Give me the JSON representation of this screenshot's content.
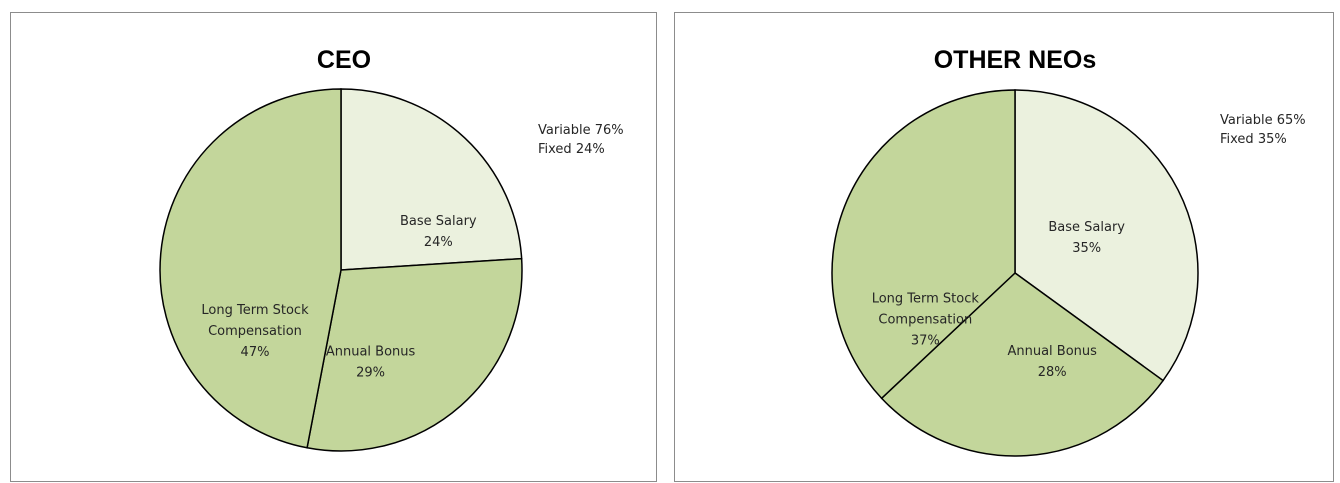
{
  "chart_data": [
    {
      "type": "pie",
      "title": "CEO",
      "slices": [
        {
          "label": "Base Salary",
          "value": 24,
          "value_label": "24%",
          "color": "#ebf1de"
        },
        {
          "label": "Annual Bonus",
          "value": 29,
          "value_label": "29%",
          "color": "#c3d69b"
        },
        {
          "label": "Long Term Stock Compensation",
          "label_lines": [
            "Long Term Stock",
            "Compensation"
          ],
          "value": 47,
          "value_label": "47%",
          "color": "#c3d69b"
        }
      ],
      "notes": [
        "Variable 76%",
        "Fixed 24%"
      ]
    },
    {
      "type": "pie",
      "title": "OTHER NEOs",
      "slices": [
        {
          "label": "Base Salary",
          "value": 35,
          "value_label": "35%",
          "color": "#ebf1de"
        },
        {
          "label": "Annual Bonus",
          "value": 28,
          "value_label": "28%",
          "color": "#c3d69b"
        },
        {
          "label": "Long Term Stock Compensation",
          "label_lines": [
            "Long Term Stock",
            "Compensation"
          ],
          "value": 37,
          "value_label": "37%",
          "color": "#c3d69b"
        }
      ],
      "notes": [
        "Variable 65%",
        "Fixed 35%"
      ]
    }
  ]
}
